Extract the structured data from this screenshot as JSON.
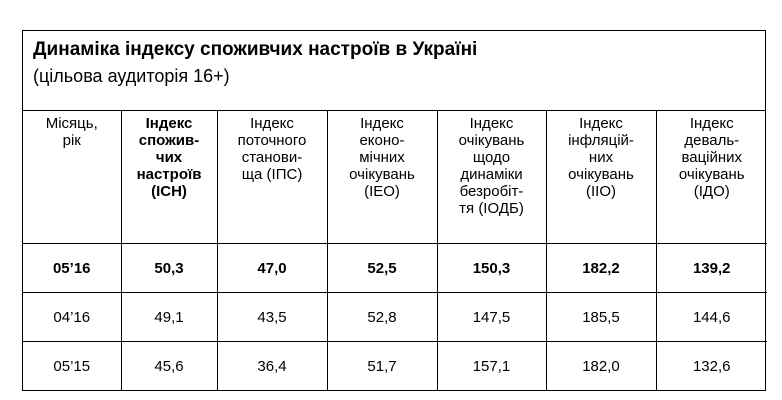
{
  "header": {
    "title": "Динаміка індексу споживчих настроїв в Україні",
    "subtitle": "(цільова аудиторія 16+)"
  },
  "table": {
    "columns": [
      [
        "Місяць,",
        "рік"
      ],
      [
        "Індекс",
        "спожив-",
        "чих",
        "настроїв",
        "(ІСН)"
      ],
      [
        "Індекс",
        "поточного",
        "станови-",
        "ща (ІПС)"
      ],
      [
        "Індекс",
        "еконо-",
        "мічних",
        "очікувань",
        "(ІЕО)"
      ],
      [
        "Індекс",
        "очікувань",
        "щодо",
        "динаміки",
        "безробіт-",
        "тя (ІОДБ)"
      ],
      [
        "Індекс",
        "інфляцій-",
        "них",
        "очікувань",
        "(ІІО)"
      ],
      [
        "Індекс",
        "деваль-",
        "ваційних",
        "очікувань",
        "(ІДО)"
      ]
    ],
    "rows": [
      [
        "05’16",
        "50,3",
        "47,0",
        "52,5",
        "150,3",
        "182,2",
        "139,2"
      ],
      [
        "04’16",
        "49,1",
        "43,5",
        "52,8",
        "147,5",
        "185,5",
        "144,6"
      ],
      [
        "05’15",
        "45,6",
        "36,4",
        "51,7",
        "157,1",
        "182,0",
        "132,6"
      ]
    ]
  }
}
